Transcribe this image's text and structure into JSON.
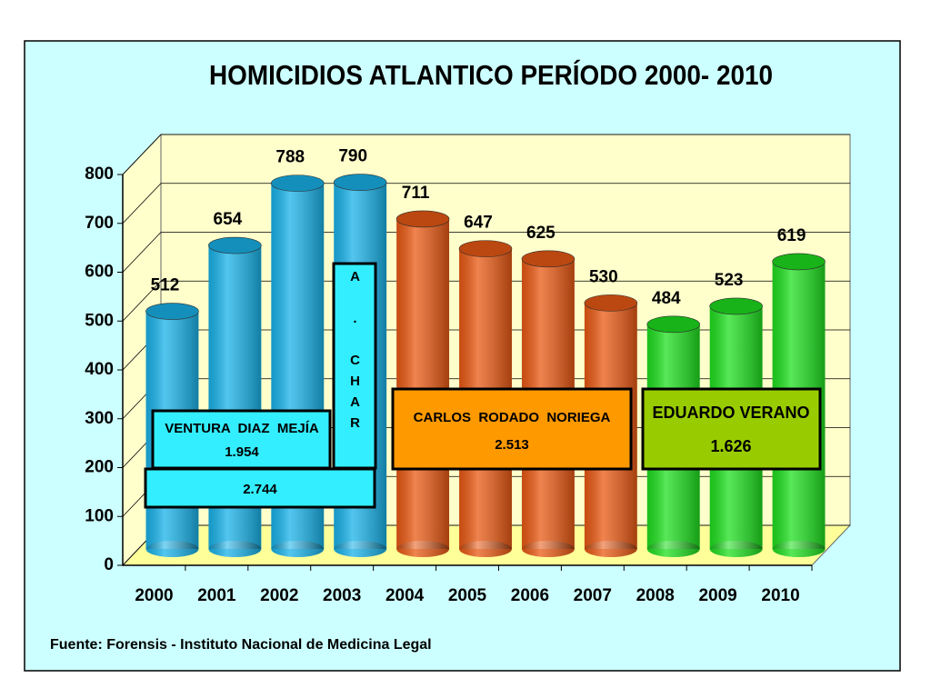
{
  "chart_data": {
    "type": "bar3d",
    "title": "HOMICIDIOS ATLANTICO PERÍODO 2000- 2010",
    "categories": [
      "2000",
      "2001",
      "2002",
      "2003",
      "2004",
      "2005",
      "2006",
      "2007",
      "2008",
      "2009",
      "2010"
    ],
    "values": [
      512,
      654,
      788,
      790,
      711,
      647,
      625,
      530,
      484,
      523,
      619
    ],
    "colors": [
      "#19b3ea",
      "#19b3ea",
      "#19b3ea",
      "#19b3ea",
      "#ea5a14",
      "#ea5a14",
      "#ea5a14",
      "#ea5a14",
      "#1fe01f",
      "#1fe01f",
      "#1fe01f"
    ],
    "ylim": [
      0,
      800
    ],
    "yticks": [
      0,
      100,
      200,
      300,
      400,
      500,
      600,
      700,
      800
    ],
    "grid": true,
    "annotations": [
      [
        "VENTURA  DIAZ  MEJÍA",
        "1.954"
      ],
      [
        "2.744"
      ],
      [
        "A . CHAR"
      ],
      [
        "CARLOS  RODADO  NORIEGA",
        "2.513"
      ],
      [
        "EDUARDO VERANO",
        "1.626"
      ]
    ],
    "source": "Fuente: Forensis - Instituto Nacional de Medicina Legal"
  }
}
